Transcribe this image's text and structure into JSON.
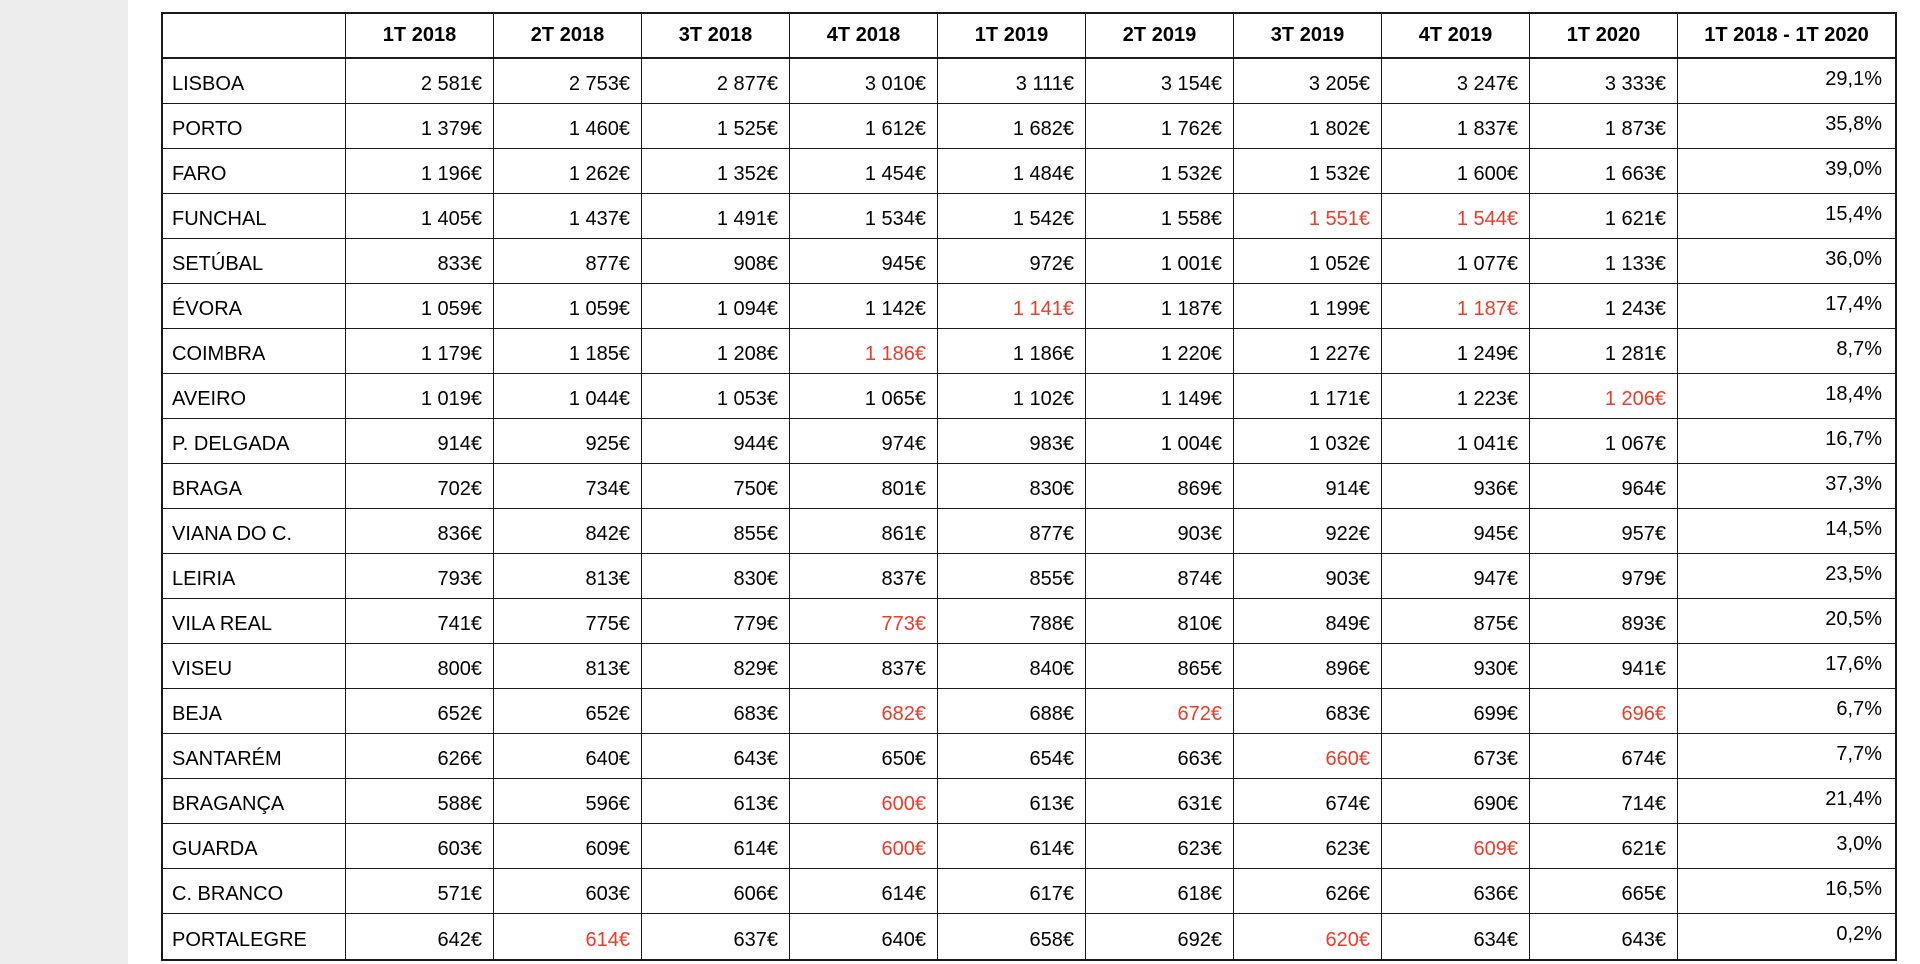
{
  "colors": {
    "highlight_red": "#ed3b2a",
    "grid_border": "#1a1a1a",
    "text": "#000000",
    "background": "#ffffff",
    "gutter": "#ededed"
  },
  "table": {
    "corner_label": "",
    "columns": [
      "1T 2018",
      "2T 2018",
      "3T 2018",
      "4T 2018",
      "1T 2019",
      "2T 2019",
      "3T 2019",
      "4T 2019",
      "1T 2020",
      "1T 2018 - 1T 2020"
    ],
    "rows": [
      {
        "city": "LISBOA",
        "change": "29,1%",
        "values": [
          {
            "text": "2 581€",
            "red": false
          },
          {
            "text": "2 753€",
            "red": false
          },
          {
            "text": "2 877€",
            "red": false
          },
          {
            "text": "3 010€",
            "red": false
          },
          {
            "text": "3 111€",
            "red": false
          },
          {
            "text": "3 154€",
            "red": false
          },
          {
            "text": "3 205€",
            "red": false
          },
          {
            "text": "3 247€",
            "red": false
          },
          {
            "text": "3 333€",
            "red": false
          }
        ]
      },
      {
        "city": "PORTO",
        "change": "35,8%",
        "values": [
          {
            "text": "1 379€",
            "red": false
          },
          {
            "text": "1 460€",
            "red": false
          },
          {
            "text": "1 525€",
            "red": false
          },
          {
            "text": "1 612€",
            "red": false
          },
          {
            "text": "1 682€",
            "red": false
          },
          {
            "text": "1 762€",
            "red": false
          },
          {
            "text": "1 802€",
            "red": false
          },
          {
            "text": "1 837€",
            "red": false
          },
          {
            "text": "1 873€",
            "red": false
          }
        ]
      },
      {
        "city": "FARO",
        "change": "39,0%",
        "values": [
          {
            "text": "1 196€",
            "red": false
          },
          {
            "text": "1 262€",
            "red": false
          },
          {
            "text": "1 352€",
            "red": false
          },
          {
            "text": "1 454€",
            "red": false
          },
          {
            "text": "1 484€",
            "red": false
          },
          {
            "text": "1 532€",
            "red": false
          },
          {
            "text": "1 532€",
            "red": false
          },
          {
            "text": "1 600€",
            "red": false
          },
          {
            "text": "1 663€",
            "red": false
          }
        ]
      },
      {
        "city": "FUNCHAL",
        "change": "15,4%",
        "values": [
          {
            "text": "1 405€",
            "red": false
          },
          {
            "text": "1 437€",
            "red": false
          },
          {
            "text": "1 491€",
            "red": false
          },
          {
            "text": "1 534€",
            "red": false
          },
          {
            "text": "1 542€",
            "red": false
          },
          {
            "text": "1 558€",
            "red": false
          },
          {
            "text": "1 551€",
            "red": true
          },
          {
            "text": "1 544€",
            "red": true
          },
          {
            "text": "1 621€",
            "red": false
          }
        ]
      },
      {
        "city": "SETÚBAL",
        "change": "36,0%",
        "values": [
          {
            "text": "833€",
            "red": false
          },
          {
            "text": "877€",
            "red": false
          },
          {
            "text": "908€",
            "red": false
          },
          {
            "text": "945€",
            "red": false
          },
          {
            "text": "972€",
            "red": false
          },
          {
            "text": "1 001€",
            "red": false
          },
          {
            "text": "1 052€",
            "red": false
          },
          {
            "text": "1 077€",
            "red": false
          },
          {
            "text": "1 133€",
            "red": false
          }
        ]
      },
      {
        "city": "ÉVORA",
        "change": "17,4%",
        "values": [
          {
            "text": "1 059€",
            "red": false
          },
          {
            "text": "1 059€",
            "red": false
          },
          {
            "text": "1 094€",
            "red": false
          },
          {
            "text": "1 142€",
            "red": false
          },
          {
            "text": "1 141€",
            "red": true
          },
          {
            "text": "1 187€",
            "red": false
          },
          {
            "text": "1 199€",
            "red": false
          },
          {
            "text": "1 187€",
            "red": true
          },
          {
            "text": "1 243€",
            "red": false
          }
        ]
      },
      {
        "city": "COIMBRA",
        "change": "8,7%",
        "values": [
          {
            "text": "1 179€",
            "red": false
          },
          {
            "text": "1 185€",
            "red": false
          },
          {
            "text": "1 208€",
            "red": false
          },
          {
            "text": "1 186€",
            "red": true
          },
          {
            "text": "1 186€",
            "red": false
          },
          {
            "text": "1 220€",
            "red": false
          },
          {
            "text": "1 227€",
            "red": false
          },
          {
            "text": "1 249€",
            "red": false
          },
          {
            "text": "1 281€",
            "red": false
          }
        ]
      },
      {
        "city": "AVEIRO",
        "change": "18,4%",
        "values": [
          {
            "text": "1 019€",
            "red": false
          },
          {
            "text": "1 044€",
            "red": false
          },
          {
            "text": "1 053€",
            "red": false
          },
          {
            "text": "1 065€",
            "red": false
          },
          {
            "text": "1 102€",
            "red": false
          },
          {
            "text": "1 149€",
            "red": false
          },
          {
            "text": "1 171€",
            "red": false
          },
          {
            "text": "1 223€",
            "red": false
          },
          {
            "text": "1 206€",
            "red": true
          }
        ]
      },
      {
        "city": "P. DELGADA",
        "change": "16,7%",
        "values": [
          {
            "text": "914€",
            "red": false
          },
          {
            "text": "925€",
            "red": false
          },
          {
            "text": "944€",
            "red": false
          },
          {
            "text": "974€",
            "red": false
          },
          {
            "text": "983€",
            "red": false
          },
          {
            "text": "1 004€",
            "red": false
          },
          {
            "text": "1 032€",
            "red": false
          },
          {
            "text": "1 041€",
            "red": false
          },
          {
            "text": "1 067€",
            "red": false
          }
        ]
      },
      {
        "city": "BRAGA",
        "change": "37,3%",
        "values": [
          {
            "text": "702€",
            "red": false
          },
          {
            "text": "734€",
            "red": false
          },
          {
            "text": "750€",
            "red": false
          },
          {
            "text": "801€",
            "red": false
          },
          {
            "text": "830€",
            "red": false
          },
          {
            "text": "869€",
            "red": false
          },
          {
            "text": "914€",
            "red": false
          },
          {
            "text": "936€",
            "red": false
          },
          {
            "text": "964€",
            "red": false
          }
        ]
      },
      {
        "city": "VIANA DO C.",
        "change": "14,5%",
        "values": [
          {
            "text": "836€",
            "red": false
          },
          {
            "text": "842€",
            "red": false
          },
          {
            "text": "855€",
            "red": false
          },
          {
            "text": "861€",
            "red": false
          },
          {
            "text": "877€",
            "red": false
          },
          {
            "text": "903€",
            "red": false
          },
          {
            "text": "922€",
            "red": false
          },
          {
            "text": "945€",
            "red": false
          },
          {
            "text": "957€",
            "red": false
          }
        ]
      },
      {
        "city": "LEIRIA",
        "change": "23,5%",
        "values": [
          {
            "text": "793€",
            "red": false
          },
          {
            "text": "813€",
            "red": false
          },
          {
            "text": "830€",
            "red": false
          },
          {
            "text": "837€",
            "red": false
          },
          {
            "text": "855€",
            "red": false
          },
          {
            "text": "874€",
            "red": false
          },
          {
            "text": "903€",
            "red": false
          },
          {
            "text": "947€",
            "red": false
          },
          {
            "text": "979€",
            "red": false
          }
        ]
      },
      {
        "city": "VILA REAL",
        "change": "20,5%",
        "values": [
          {
            "text": "741€",
            "red": false
          },
          {
            "text": "775€",
            "red": false
          },
          {
            "text": "779€",
            "red": false
          },
          {
            "text": "773€",
            "red": true
          },
          {
            "text": "788€",
            "red": false
          },
          {
            "text": "810€",
            "red": false
          },
          {
            "text": "849€",
            "red": false
          },
          {
            "text": "875€",
            "red": false
          },
          {
            "text": "893€",
            "red": false
          }
        ]
      },
      {
        "city": "VISEU",
        "change": "17,6%",
        "values": [
          {
            "text": "800€",
            "red": false
          },
          {
            "text": "813€",
            "red": false
          },
          {
            "text": "829€",
            "red": false
          },
          {
            "text": "837€",
            "red": false
          },
          {
            "text": "840€",
            "red": false
          },
          {
            "text": "865€",
            "red": false
          },
          {
            "text": "896€",
            "red": false
          },
          {
            "text": "930€",
            "red": false
          },
          {
            "text": "941€",
            "red": false
          }
        ]
      },
      {
        "city": "BEJA",
        "change": "6,7%",
        "values": [
          {
            "text": "652€",
            "red": false
          },
          {
            "text": "652€",
            "red": false
          },
          {
            "text": "683€",
            "red": false
          },
          {
            "text": "682€",
            "red": true
          },
          {
            "text": "688€",
            "red": false
          },
          {
            "text": "672€",
            "red": true
          },
          {
            "text": "683€",
            "red": false
          },
          {
            "text": "699€",
            "red": false
          },
          {
            "text": "696€",
            "red": true
          }
        ]
      },
      {
        "city": "SANTARÉM",
        "change": "7,7%",
        "values": [
          {
            "text": "626€",
            "red": false
          },
          {
            "text": "640€",
            "red": false
          },
          {
            "text": "643€",
            "red": false
          },
          {
            "text": "650€",
            "red": false
          },
          {
            "text": "654€",
            "red": false
          },
          {
            "text": "663€",
            "red": false
          },
          {
            "text": "660€",
            "red": true
          },
          {
            "text": "673€",
            "red": false
          },
          {
            "text": "674€",
            "red": false
          }
        ]
      },
      {
        "city": "BRAGANÇA",
        "change": "21,4%",
        "values": [
          {
            "text": "588€",
            "red": false
          },
          {
            "text": "596€",
            "red": false
          },
          {
            "text": "613€",
            "red": false
          },
          {
            "text": "600€",
            "red": true
          },
          {
            "text": "613€",
            "red": false
          },
          {
            "text": "631€",
            "red": false
          },
          {
            "text": "674€",
            "red": false
          },
          {
            "text": "690€",
            "red": false
          },
          {
            "text": "714€",
            "red": false
          }
        ]
      },
      {
        "city": "GUARDA",
        "change": "3,0%",
        "values": [
          {
            "text": "603€",
            "red": false
          },
          {
            "text": "609€",
            "red": false
          },
          {
            "text": "614€",
            "red": false
          },
          {
            "text": "600€",
            "red": true
          },
          {
            "text": "614€",
            "red": false
          },
          {
            "text": "623€",
            "red": false
          },
          {
            "text": "623€",
            "red": false
          },
          {
            "text": "609€",
            "red": true
          },
          {
            "text": "621€",
            "red": false
          }
        ]
      },
      {
        "city": "C. BRANCO",
        "change": "16,5%",
        "values": [
          {
            "text": "571€",
            "red": false
          },
          {
            "text": "603€",
            "red": false
          },
          {
            "text": "606€",
            "red": false
          },
          {
            "text": "614€",
            "red": false
          },
          {
            "text": "617€",
            "red": false
          },
          {
            "text": "618€",
            "red": false
          },
          {
            "text": "626€",
            "red": false
          },
          {
            "text": "636€",
            "red": false
          },
          {
            "text": "665€",
            "red": false
          }
        ]
      },
      {
        "city": "PORTALEGRE",
        "change": "0,2%",
        "values": [
          {
            "text": "642€",
            "red": false
          },
          {
            "text": "614€",
            "red": true
          },
          {
            "text": "637€",
            "red": false
          },
          {
            "text": "640€",
            "red": false
          },
          {
            "text": "658€",
            "red": false
          },
          {
            "text": "692€",
            "red": false
          },
          {
            "text": "620€",
            "red": true
          },
          {
            "text": "634€",
            "red": false
          },
          {
            "text": "643€",
            "red": false
          }
        ]
      }
    ]
  }
}
